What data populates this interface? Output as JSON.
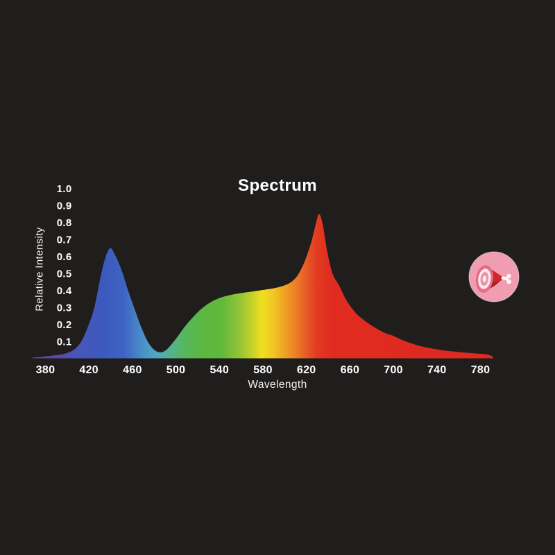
{
  "page": {
    "bg": "#201d1d",
    "text_color": "#ffffff"
  },
  "chart_data": {
    "type": "area",
    "title": "Spectrum",
    "xlabel": "Wavelength",
    "ylabel": "Relative Intensity",
    "x_ticks": [
      380,
      420,
      460,
      500,
      540,
      580,
      620,
      660,
      700,
      740,
      780
    ],
    "y_ticks": [
      "0.1",
      "0.2",
      "0.3",
      "0.4",
      "0.5",
      "0.6",
      "0.7",
      "0.8",
      "0.9",
      "1.0"
    ],
    "x_range": [
      368,
      792
    ],
    "ylim": [
      0,
      1.0
    ],
    "grid": false,
    "legend": "none",
    "peaks": [
      {
        "x": 439.5,
        "y": 0.65
      },
      {
        "x": 631.5,
        "y": 0.85
      }
    ],
    "series": [
      {
        "name": "relative-intensity",
        "points": [
          [
            368,
            0.004
          ],
          [
            378,
            0.01
          ],
          [
            388,
            0.017
          ],
          [
            398,
            0.028
          ],
          [
            406,
            0.05
          ],
          [
            413,
            0.1
          ],
          [
            419,
            0.185
          ],
          [
            425,
            0.3
          ],
          [
            430,
            0.46
          ],
          [
            435,
            0.59
          ],
          [
            439.5,
            0.65
          ],
          [
            444,
            0.61
          ],
          [
            450,
            0.52
          ],
          [
            456,
            0.4
          ],
          [
            462,
            0.29
          ],
          [
            468,
            0.185
          ],
          [
            474,
            0.1
          ],
          [
            480,
            0.05
          ],
          [
            486,
            0.035
          ],
          [
            492,
            0.055
          ],
          [
            500,
            0.115
          ],
          [
            508,
            0.185
          ],
          [
            516,
            0.245
          ],
          [
            524,
            0.295
          ],
          [
            533,
            0.335
          ],
          [
            543,
            0.362
          ],
          [
            555,
            0.38
          ],
          [
            568,
            0.392
          ],
          [
            580,
            0.403
          ],
          [
            590,
            0.413
          ],
          [
            599,
            0.428
          ],
          [
            606,
            0.45
          ],
          [
            612,
            0.49
          ],
          [
            618,
            0.565
          ],
          [
            624,
            0.675
          ],
          [
            628,
            0.775
          ],
          [
            631.5,
            0.85
          ],
          [
            635,
            0.79
          ],
          [
            639,
            0.635
          ],
          [
            644,
            0.5
          ],
          [
            650,
            0.43
          ],
          [
            657,
            0.34
          ],
          [
            665,
            0.27
          ],
          [
            673,
            0.225
          ],
          [
            682,
            0.185
          ],
          [
            692,
            0.15
          ],
          [
            700,
            0.132
          ],
          [
            710,
            0.103
          ],
          [
            722,
            0.077
          ],
          [
            735,
            0.058
          ],
          [
            748,
            0.045
          ],
          [
            762,
            0.036
          ],
          [
            775,
            0.029
          ],
          [
            785,
            0.024
          ],
          [
            791,
            0.013
          ]
        ]
      }
    ],
    "gradient_stops": [
      {
        "wl": 368,
        "color": "#6a4496"
      },
      {
        "wl": 393,
        "color": "#5849a9"
      },
      {
        "wl": 410,
        "color": "#4757b8"
      },
      {
        "wl": 432,
        "color": "#3c59bf"
      },
      {
        "wl": 452,
        "color": "#3e63c3"
      },
      {
        "wl": 468,
        "color": "#4a8cc9"
      },
      {
        "wl": 481,
        "color": "#51a6c2"
      },
      {
        "wl": 494,
        "color": "#54b295"
      },
      {
        "wl": 507,
        "color": "#56b75f"
      },
      {
        "wl": 523,
        "color": "#5ab742"
      },
      {
        "wl": 543,
        "color": "#62b93b"
      },
      {
        "wl": 559,
        "color": "#97c437"
      },
      {
        "wl": 571,
        "color": "#c8d22a"
      },
      {
        "wl": 579,
        "color": "#eee01d"
      },
      {
        "wl": 589,
        "color": "#f2c824"
      },
      {
        "wl": 599,
        "color": "#f0a525"
      },
      {
        "wl": 609,
        "color": "#ee8326"
      },
      {
        "wl": 619,
        "color": "#e75e26"
      },
      {
        "wl": 629,
        "color": "#e23c23"
      },
      {
        "wl": 643,
        "color": "#df2b20"
      },
      {
        "wl": 792,
        "color": "#de2a20"
      }
    ]
  },
  "badge_icon": {
    "name": "ham-icon",
    "bg": "#f09db2",
    "rim": "#ffffff",
    "meat": "#d0252b",
    "meat_shadow": "#a81d24",
    "face_outer": "#e26e88",
    "face_light": "#fbe9ef",
    "face_mid": "#ed93a9",
    "face_center": "#fbeff2",
    "bone": "#fdf6f7"
  }
}
